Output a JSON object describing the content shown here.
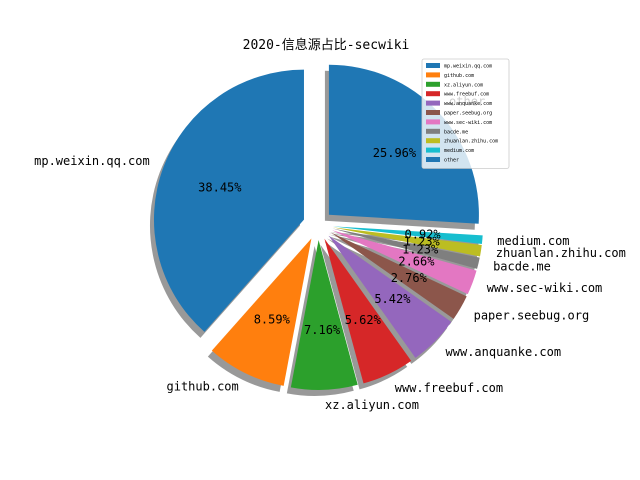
{
  "chart_data": {
    "type": "pie",
    "title": "2020-信息源占比-secwiki",
    "legend_position": "upper-right",
    "shadow": true,
    "exploded": true,
    "start_angle_deg": 90,
    "direction": "counterclockwise",
    "slices": [
      {
        "label": "mp.weixin.qq.com",
        "value": 38.45,
        "pct_text": "38.45%",
        "color": "#1f77b4"
      },
      {
        "label": "github.com",
        "value": 8.59,
        "pct_text": "8.59%",
        "color": "#ff7f0e"
      },
      {
        "label": "xz.aliyun.com",
        "value": 7.16,
        "pct_text": "7.16%",
        "color": "#2ca02c"
      },
      {
        "label": "www.freebuf.com",
        "value": 5.62,
        "pct_text": "5.62%",
        "color": "#d62728"
      },
      {
        "label": "www.anquanke.com",
        "value": 5.42,
        "pct_text": "5.42%",
        "color": "#9467bd"
      },
      {
        "label": "paper.seebug.org",
        "value": 2.76,
        "pct_text": "2.76%",
        "color": "#8c564b"
      },
      {
        "label": "www.sec-wiki.com",
        "value": 2.66,
        "pct_text": "2.66%",
        "color": "#e377c2"
      },
      {
        "label": "bacde.me",
        "value": 1.23,
        "pct_text": "1.23%",
        "color": "#7f7f7f"
      },
      {
        "label": "zhuanlan.zhihu.com",
        "value": 1.23,
        "pct_text": "1.23%",
        "color": "#bcbd22"
      },
      {
        "label": "medium.com",
        "value": 0.92,
        "pct_text": "0.92%",
        "color": "#17becf"
      },
      {
        "label": "other",
        "value": 25.96,
        "pct_text": "25.96%",
        "color": "#1f77b4"
      }
    ]
  }
}
